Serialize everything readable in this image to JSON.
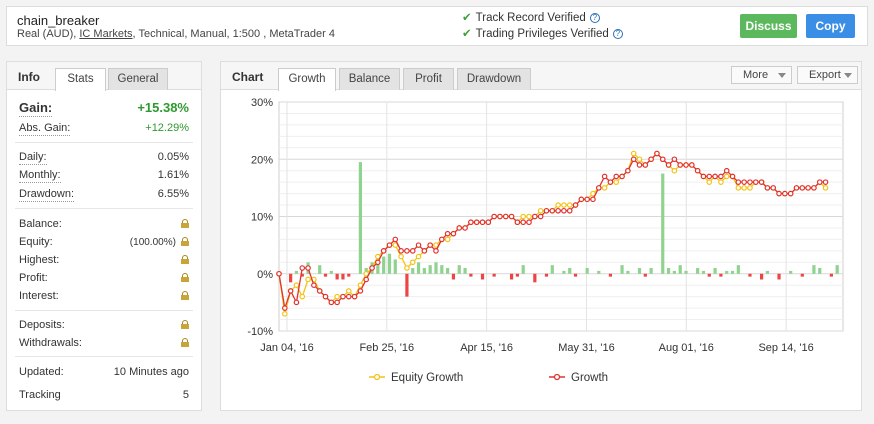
{
  "header": {
    "account_name": "chain_breaker",
    "account_type": "Real (AUD),",
    "broker": "IC Markets",
    "account_details": ", Technical, Manual, 1:500 , MetaTrader 4",
    "track_record": "Track Record Verified",
    "trading_privileges": "Trading Privileges Verified",
    "discuss_label": "Discuss",
    "copy_label": "Copy"
  },
  "info_panel": {
    "title": "Info",
    "tabs": [
      "Stats",
      "General"
    ],
    "gain": {
      "label": "Gain:",
      "value": "+15.38%"
    },
    "abs_gain": {
      "label": "Abs. Gain:",
      "value": "+12.29%"
    },
    "daily": {
      "label": "Daily:",
      "value": "0.05%"
    },
    "monthly": {
      "label": "Monthly:",
      "value": "1.61%"
    },
    "drawdown": {
      "label": "Drawdown:",
      "value": "6.55%"
    },
    "balance": {
      "label": "Balance:"
    },
    "equity": {
      "label": "Equity:",
      "value": "(100.00%)"
    },
    "highest": {
      "label": "Highest:"
    },
    "profit": {
      "label": "Profit:"
    },
    "interest": {
      "label": "Interest:"
    },
    "deposits": {
      "label": "Deposits:"
    },
    "withdrawals": {
      "label": "Withdrawals:"
    },
    "updated": {
      "label": "Updated:",
      "value": "10 Minutes ago"
    },
    "tracking": {
      "label": "Tracking",
      "value": "5"
    }
  },
  "chart_panel": {
    "title": "Chart",
    "tabs": [
      "Growth",
      "Balance",
      "Profit",
      "Drawdown"
    ],
    "more_label": "More",
    "export_label": "Export"
  },
  "colors": {
    "equity_line": "#f3c316",
    "growth_line": "#e0322f",
    "bar_positive": "#8fd38f",
    "bar_negative": "#ee4444",
    "discuss": "#5cb85c",
    "copy": "#3a8ee6"
  },
  "chart_data": {
    "type": "line",
    "x_tick_labels": [
      "Jan 04, '16",
      "Feb 25, '16",
      "Apr 15, '16",
      "May 31, '16",
      "Aug 01, '16",
      "Sep 14, '16"
    ],
    "y_tick_labels": [
      "30%",
      "20%",
      "10%",
      "0%",
      "-10%"
    ],
    "ylim": [
      -10,
      30
    ],
    "xlim": [
      0,
      97
    ],
    "grid": true,
    "legend_position": "bottom",
    "legend": [
      "Equity Growth",
      "Growth"
    ],
    "series": [
      {
        "name": "Equity Growth",
        "values": [
          0,
          -7,
          -3,
          -2,
          -4,
          -1,
          -1,
          -3,
          -4,
          -5,
          -4,
          -4,
          -3,
          -4,
          -2,
          0,
          1,
          3,
          4,
          5,
          5,
          3,
          1,
          2,
          3,
          4,
          5,
          5,
          6,
          6,
          7,
          8,
          8,
          9,
          9,
          9,
          9,
          10,
          10,
          10,
          10,
          9,
          10,
          10,
          10,
          11,
          11,
          11,
          12,
          12,
          12,
          12,
          13,
          13,
          14,
          15,
          15,
          16,
          16,
          17,
          18,
          21,
          20,
          19,
          20,
          21,
          20,
          19,
          18,
          19,
          19,
          19,
          18,
          17,
          16,
          17,
          16,
          17,
          17,
          15,
          15,
          15,
          16,
          16,
          15,
          15,
          14,
          14,
          14,
          15,
          15,
          15,
          15,
          16,
          15
        ]
      },
      {
        "name": "Growth",
        "values": [
          0,
          -6,
          -3,
          -5,
          1,
          1,
          -2,
          -3,
          -4,
          -5,
          -5,
          -4,
          -4,
          -4,
          -3,
          -1,
          1,
          2,
          4,
          5,
          6,
          4,
          4,
          4,
          5,
          4,
          5,
          4,
          6,
          7,
          7,
          8,
          8,
          9,
          9,
          9,
          9,
          10,
          10,
          10,
          10,
          9,
          9,
          9,
          10,
          10,
          11,
          11,
          11,
          11,
          11,
          12,
          13,
          13,
          13,
          15,
          17,
          16,
          17,
          17,
          18,
          20,
          19,
          19,
          20,
          21,
          20,
          19,
          20,
          19,
          19,
          19,
          18,
          17,
          17,
          17,
          17,
          18,
          17,
          16,
          16,
          16,
          16,
          16,
          15,
          15,
          14,
          14,
          14,
          15,
          15,
          15,
          15,
          16,
          16
        ]
      }
    ],
    "bars": [
      {
        "x": 2,
        "v": -1.5
      },
      {
        "x": 3,
        "v": 0.5
      },
      {
        "x": 4,
        "v": -0.5
      },
      {
        "x": 5,
        "v": 2
      },
      {
        "x": 7,
        "v": 1.5
      },
      {
        "x": 8,
        "v": -0.5
      },
      {
        "x": 9,
        "v": 0.5
      },
      {
        "x": 10,
        "v": -1
      },
      {
        "x": 11,
        "v": -1
      },
      {
        "x": 12,
        "v": -0.5
      },
      {
        "x": 14,
        "v": 19.5
      },
      {
        "x": 15,
        "v": 1
      },
      {
        "x": 16,
        "v": 2
      },
      {
        "x": 17,
        "v": 2.5
      },
      {
        "x": 18,
        "v": 3
      },
      {
        "x": 19,
        "v": 3.5
      },
      {
        "x": 20,
        "v": 2.5
      },
      {
        "x": 22,
        "v": -4
      },
      {
        "x": 23,
        "v": 1
      },
      {
        "x": 24,
        "v": 2
      },
      {
        "x": 25,
        "v": 1
      },
      {
        "x": 26,
        "v": 1.5
      },
      {
        "x": 27,
        "v": 2
      },
      {
        "x": 28,
        "v": 1.5
      },
      {
        "x": 29,
        "v": 1
      },
      {
        "x": 30,
        "v": -1
      },
      {
        "x": 31,
        "v": 1.5
      },
      {
        "x": 32,
        "v": 1
      },
      {
        "x": 33,
        "v": -0.5
      },
      {
        "x": 35,
        "v": -1
      },
      {
        "x": 37,
        "v": -0.5
      },
      {
        "x": 40,
        "v": -1
      },
      {
        "x": 41,
        "v": -0.5
      },
      {
        "x": 42,
        "v": 1.5
      },
      {
        "x": 44,
        "v": -1.5
      },
      {
        "x": 46,
        "v": -0.5
      },
      {
        "x": 47,
        "v": 1.5
      },
      {
        "x": 49,
        "v": 0.5
      },
      {
        "x": 50,
        "v": 1
      },
      {
        "x": 51,
        "v": -0.5
      },
      {
        "x": 53,
        "v": 1
      },
      {
        "x": 55,
        "v": 0.5
      },
      {
        "x": 57,
        "v": -0.5
      },
      {
        "x": 59,
        "v": 1.5
      },
      {
        "x": 60,
        "v": 0.5
      },
      {
        "x": 62,
        "v": 1
      },
      {
        "x": 63,
        "v": -0.5
      },
      {
        "x": 64,
        "v": 1
      },
      {
        "x": 66,
        "v": 17.5
      },
      {
        "x": 67,
        "v": 1
      },
      {
        "x": 68,
        "v": 0.5
      },
      {
        "x": 69,
        "v": 1.5
      },
      {
        "x": 70,
        "v": 0.5
      },
      {
        "x": 72,
        "v": 1
      },
      {
        "x": 73,
        "v": 0.5
      },
      {
        "x": 74,
        "v": -0.5
      },
      {
        "x": 75,
        "v": 1
      },
      {
        "x": 76,
        "v": -0.5
      },
      {
        "x": 77,
        "v": 0.5
      },
      {
        "x": 78,
        "v": 0.5
      },
      {
        "x": 79,
        "v": 1.5
      },
      {
        "x": 81,
        "v": -0.5
      },
      {
        "x": 83,
        "v": -1
      },
      {
        "x": 84,
        "v": 0.5
      },
      {
        "x": 86,
        "v": -1
      },
      {
        "x": 88,
        "v": 0.5
      },
      {
        "x": 90,
        "v": -0.5
      },
      {
        "x": 92,
        "v": 1.5
      },
      {
        "x": 93,
        "v": 1
      },
      {
        "x": 95,
        "v": -0.5
      },
      {
        "x": 96,
        "v": 1.5
      }
    ]
  }
}
